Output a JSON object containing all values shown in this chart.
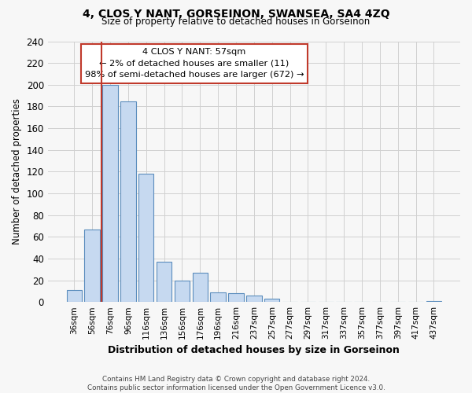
{
  "title": "4, CLOS Y NANT, GORSEINON, SWANSEA, SA4 4ZQ",
  "subtitle": "Size of property relative to detached houses in Gorseinon",
  "xlabel": "Distribution of detached houses by size in Gorseinon",
  "ylabel": "Number of detached properties",
  "bar_color": "#c6d9f0",
  "bar_edge_color": "#5b8dbd",
  "categories": [
    "36sqm",
    "56sqm",
    "76sqm",
    "96sqm",
    "116sqm",
    "136sqm",
    "156sqm",
    "176sqm",
    "196sqm",
    "216sqm",
    "237sqm",
    "257sqm",
    "277sqm",
    "297sqm",
    "317sqm",
    "337sqm",
    "357sqm",
    "377sqm",
    "397sqm",
    "417sqm",
    "437sqm"
  ],
  "values": [
    11,
    67,
    200,
    185,
    118,
    37,
    20,
    27,
    9,
    8,
    6,
    3,
    0,
    0,
    0,
    0,
    0,
    0,
    0,
    0,
    1
  ],
  "ylim": [
    0,
    240
  ],
  "yticks": [
    0,
    20,
    40,
    60,
    80,
    100,
    120,
    140,
    160,
    180,
    200,
    220,
    240
  ],
  "vline_color": "#c0392b",
  "vline_x_index": 1,
  "annotation_line1": "4 CLOS Y NANT: 57sqm",
  "annotation_line2": "← 2% of detached houses are smaller (11)",
  "annotation_line3": "98% of semi-detached houses are larger (672) →",
  "annotation_box_facecolor": "white",
  "annotation_box_edgecolor": "#c0392b",
  "footer_line1": "Contains HM Land Registry data © Crown copyright and database right 2024.",
  "footer_line2": "Contains public sector information licensed under the Open Government Licence v3.0.",
  "grid_color": "#d0d0d0",
  "bg_color": "#f7f7f7"
}
